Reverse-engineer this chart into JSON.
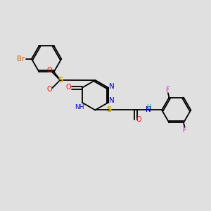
{
  "bg_color": "#e0e0e0",
  "atom_colors": {
    "C": "#000000",
    "N": "#0000cc",
    "O": "#ff0000",
    "S": "#ccaa00",
    "Br": "#cc5500",
    "F": "#dd00dd",
    "H": "#008888"
  },
  "figsize": [
    3.0,
    3.0
  ],
  "dpi": 100
}
